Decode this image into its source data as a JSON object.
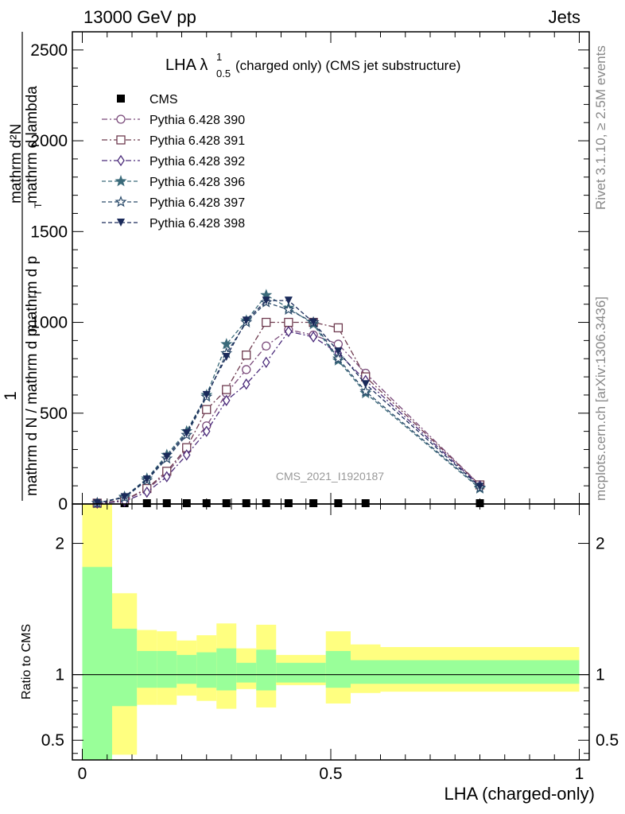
{
  "header": {
    "left": "13000 GeV pp",
    "right": "Jets"
  },
  "side_labels": {
    "rivet": "Rivet 3.1.10, ≥ 2.5M events",
    "mcplots": "mcplots.cern.ch [arXiv:1306.3436]"
  },
  "watermark": "CMS_2021_I1920187",
  "title": {
    "main": "LHA λ",
    "sup": "1",
    "sub": "0.5",
    "rest": " (charged only) (CMS jet substructure)"
  },
  "ylabel": {
    "num": "1",
    "den": "mathrm d N / mathrm d p",
    "frac_num": "mathrm d²N",
    "frac_den": "mathrm d p",
    "frac_den_tail": " mathrm d lambda",
    "sub_T": "T"
  },
  "xlabel": "LHA (charged-only)",
  "ratio_ylabel": "Ratio to CMS",
  "colors": {
    "cms": "#000000",
    "p390": "#7a4a7a",
    "p391": "#6e3a4e",
    "p392": "#4a2a7a",
    "p396": "#3a6a7a",
    "p397": "#2a4a6a",
    "p398": "#1a2a5a",
    "band_inner": "#99ff99",
    "band_outer": "#ffff80"
  },
  "chart_data": {
    "type": "line",
    "main": {
      "xlim": [
        -0.02,
        1.02
      ],
      "ylim": [
        0,
        2600
      ],
      "yticks": [
        0,
        500,
        1000,
        1500,
        2000,
        2500
      ],
      "ytick_labels": [
        "0",
        "500",
        "1000",
        "1500",
        "2000",
        "2500"
      ],
      "series": [
        {
          "name": "CMS",
          "marker": "square-filled",
          "key": "cms",
          "x": [
            0.03,
            0.085,
            0.13,
            0.17,
            0.21,
            0.25,
            0.29,
            0.33,
            0.37,
            0.415,
            0.465,
            0.515,
            0.57,
            0.8
          ],
          "y": [
            2,
            2,
            2,
            2,
            2,
            2,
            2,
            2,
            2,
            2,
            2,
            2,
            2,
            2
          ]
        },
        {
          "name": "Pythia 6.428 390",
          "marker": "circle-open",
          "key": "p390",
          "x": [
            0.03,
            0.085,
            0.13,
            0.17,
            0.21,
            0.25,
            0.29,
            0.33,
            0.37,
            0.415,
            0.465,
            0.515,
            0.57,
            0.8
          ],
          "y": [
            2,
            20,
            80,
            170,
            300,
            430,
            610,
            740,
            870,
            960,
            930,
            880,
            720,
            105
          ]
        },
        {
          "name": "Pythia 6.428 391",
          "marker": "square-open",
          "key": "p391",
          "x": [
            0.03,
            0.085,
            0.13,
            0.17,
            0.21,
            0.25,
            0.29,
            0.33,
            0.37,
            0.415,
            0.465,
            0.515,
            0.57,
            0.8
          ],
          "y": [
            2,
            22,
            85,
            180,
            310,
            520,
            630,
            820,
            1000,
            1000,
            1000,
            970,
            700,
            105
          ]
        },
        {
          "name": "Pythia 6.428 392",
          "marker": "diamond-open",
          "key": "p392",
          "x": [
            0.03,
            0.085,
            0.13,
            0.17,
            0.21,
            0.25,
            0.29,
            0.33,
            0.37,
            0.415,
            0.465,
            0.515,
            0.57,
            0.8
          ],
          "y": [
            2,
            15,
            65,
            150,
            270,
            400,
            570,
            660,
            780,
            950,
            920,
            830,
            680,
            100
          ]
        },
        {
          "name": "Pythia 6.428 396",
          "marker": "star-filled",
          "key": "p396",
          "x": [
            0.03,
            0.085,
            0.13,
            0.17,
            0.21,
            0.25,
            0.29,
            0.33,
            0.37,
            0.415,
            0.465,
            0.515,
            0.57,
            0.8
          ],
          "y": [
            5,
            40,
            140,
            270,
            400,
            600,
            880,
            1010,
            1150,
            1080,
            990,
            790,
            610,
            85
          ]
        },
        {
          "name": "Pythia 6.428 397",
          "marker": "star-open",
          "key": "p397",
          "x": [
            0.03,
            0.085,
            0.13,
            0.17,
            0.21,
            0.25,
            0.29,
            0.33,
            0.37,
            0.415,
            0.465,
            0.515,
            0.57,
            0.8
          ],
          "y": [
            5,
            35,
            130,
            250,
            380,
            590,
            830,
            1000,
            1110,
            1070,
            1000,
            800,
            620,
            90
          ]
        },
        {
          "name": "Pythia 6.428 398",
          "marker": "triangle-down-filled",
          "key": "p398",
          "x": [
            0.03,
            0.085,
            0.13,
            0.17,
            0.21,
            0.25,
            0.29,
            0.33,
            0.37,
            0.415,
            0.465,
            0.515,
            0.57,
            0.8
          ],
          "y": [
            5,
            38,
            135,
            260,
            390,
            600,
            810,
            1010,
            1120,
            1120,
            1000,
            840,
            660,
            95
          ]
        }
      ]
    },
    "ratio": {
      "ylim": [
        0.35,
        2.3
      ],
      "yticks": [
        0.5,
        1,
        2
      ],
      "ytick_labels": [
        "0.5",
        "1",
        "2"
      ],
      "xticks": [
        0,
        0.5,
        1
      ],
      "xtick_labels": [
        "0",
        "0.5",
        "1"
      ],
      "bin_edges": [
        0.0,
        0.06,
        0.11,
        0.15,
        0.19,
        0.23,
        0.27,
        0.31,
        0.35,
        0.39,
        0.44,
        0.49,
        0.54,
        0.6,
        1.0
      ],
      "inner_lo": [
        0.35,
        0.76,
        0.9,
        0.9,
        0.93,
        0.9,
        0.88,
        0.94,
        0.88,
        0.94,
        0.94,
        0.9,
        0.93,
        0.93,
        0.93
      ],
      "inner_hi": [
        1.82,
        1.35,
        1.18,
        1.18,
        1.15,
        1.17,
        1.2,
        1.09,
        1.19,
        1.09,
        1.09,
        1.18,
        1.11,
        1.11,
        1.11
      ],
      "outer_lo": [
        0.35,
        0.39,
        0.77,
        0.77,
        0.84,
        0.8,
        0.74,
        0.89,
        0.75,
        0.92,
        0.92,
        0.78,
        0.86,
        0.87,
        0.87
      ],
      "outer_hi": [
        2.3,
        1.62,
        1.34,
        1.33,
        1.26,
        1.3,
        1.39,
        1.2,
        1.38,
        1.15,
        1.15,
        1.33,
        1.23,
        1.21,
        1.21
      ]
    },
    "legend_position": "top-left"
  }
}
